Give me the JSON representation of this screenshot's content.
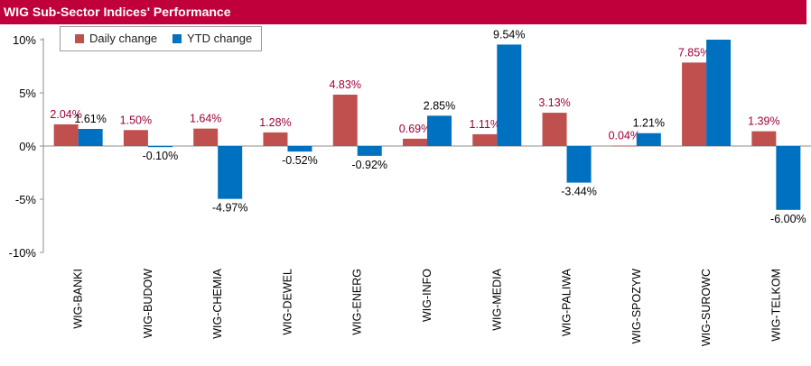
{
  "title": "WIG Sub-Sector Indices' Performance",
  "legend": {
    "daily_label": "Daily change",
    "ytd_label": "YTD change"
  },
  "chart_data": {
    "type": "bar",
    "title": "WIG Sub-Sector Indices' Performance",
    "categories": [
      "WIG-BANKI",
      "WIG-BUDOW",
      "WIG-CHEMIA",
      "WIG-DEWEL",
      "WIG-ENERG",
      "WIG-INFO",
      "WIG-MEDIA",
      "WIG-PALIWA",
      "WIG-SPOZYW",
      "WIG-SUROWC",
      "WIG-TELKOM"
    ],
    "series": [
      {
        "name": "Daily change",
        "color": "#c0504d",
        "label_color": "#a0003a",
        "values": [
          2.04,
          1.5,
          1.64,
          1.28,
          4.83,
          0.69,
          1.11,
          3.13,
          0.04,
          7.85,
          1.39
        ],
        "labels": [
          "2.04%",
          "1.50%",
          "1.64%",
          "1.28%",
          "4.83%",
          "0.69%",
          "1.11%",
          "3.13%",
          "0.04%",
          "7.85%",
          "1.39%"
        ]
      },
      {
        "name": "YTD change",
        "color": "#0070c0",
        "label_color": "#000000",
        "values": [
          1.61,
          -0.1,
          -4.97,
          -0.52,
          -0.92,
          2.85,
          9.54,
          -3.44,
          1.21,
          10.0,
          -6.0
        ],
        "labels": [
          "1.61%",
          "-0.10%",
          "-4.97%",
          "-0.52%",
          "-0.92%",
          "2.85%",
          "9.54%",
          "-3.44%",
          "1.21%",
          "",
          "-6.00%"
        ]
      }
    ],
    "ylim": [
      -10,
      10
    ],
    "yticks": [
      10,
      5,
      0,
      -5,
      -10
    ],
    "ytick_labels": [
      "10%",
      "5%",
      "0%",
      "-5%",
      "-10%"
    ],
    "grid": false,
    "legend_position": "top-left"
  }
}
